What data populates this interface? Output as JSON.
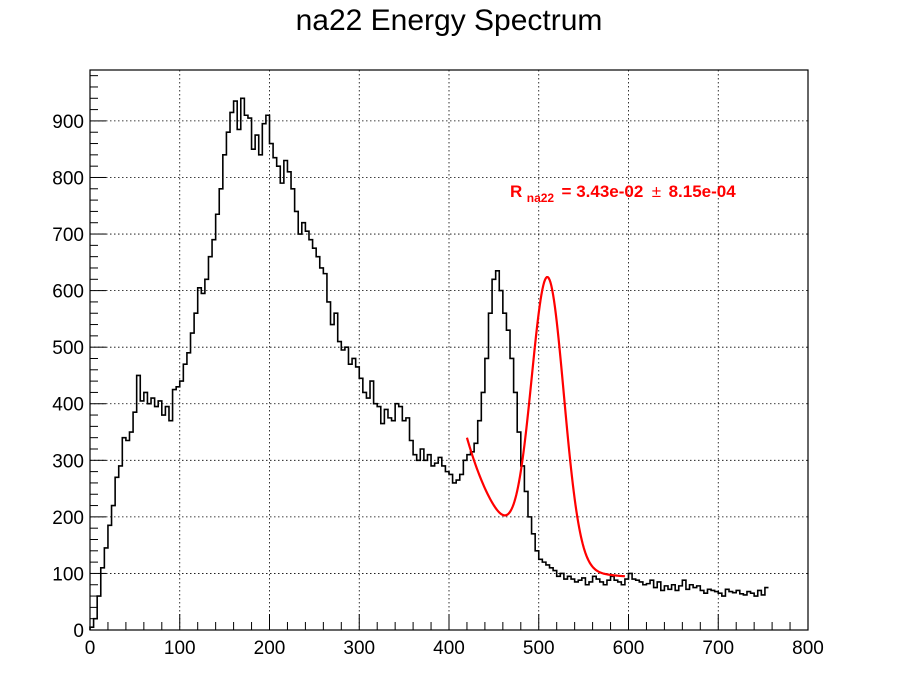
{
  "chart_data": {
    "type": "histogram",
    "title": "na22 Energy Spectrum",
    "xlabel": "",
    "ylabel": "",
    "xlim": [
      0,
      800
    ],
    "ylim": [
      0,
      990
    ],
    "xticks": [
      0,
      100,
      200,
      300,
      400,
      500,
      600,
      700,
      800
    ],
    "yticks": [
      0,
      100,
      200,
      300,
      400,
      500,
      600,
      700,
      800,
      900
    ],
    "grid": true,
    "bin_width": 4,
    "histogram_color": "#000000",
    "counts": [
      5,
      20,
      60,
      110,
      145,
      185,
      220,
      270,
      290,
      340,
      335,
      350,
      385,
      450,
      405,
      420,
      400,
      410,
      395,
      405,
      380,
      395,
      370,
      425,
      430,
      440,
      470,
      490,
      525,
      560,
      605,
      595,
      620,
      660,
      690,
      735,
      780,
      840,
      880,
      915,
      935,
      885,
      940,
      910,
      905,
      850,
      875,
      840,
      895,
      910,
      860,
      835,
      820,
      790,
      830,
      810,
      780,
      740,
      700,
      720,
      705,
      690,
      675,
      660,
      640,
      630,
      580,
      540,
      560,
      510,
      495,
      500,
      470,
      480,
      465,
      445,
      420,
      410,
      440,
      400,
      395,
      365,
      390,
      375,
      370,
      400,
      395,
      370,
      375,
      335,
      310,
      300,
      320,
      300,
      310,
      290,
      295,
      305,
      290,
      280,
      275,
      260,
      265,
      275,
      300,
      310,
      315,
      330,
      370,
      420,
      480,
      560,
      620,
      635,
      600,
      560,
      530,
      480,
      420,
      350,
      290,
      245,
      200,
      170,
      140,
      125,
      120,
      115,
      110,
      105,
      95,
      100,
      90,
      95,
      90,
      85,
      88,
      92,
      80,
      85,
      95,
      90,
      85,
      80,
      88,
      95,
      88,
      85,
      80,
      90,
      100,
      90,
      88,
      85,
      80,
      82,
      88,
      75,
      85,
      70,
      78,
      72,
      80,
      70,
      78,
      88,
      72,
      80,
      75,
      78,
      70,
      65,
      72,
      70,
      68,
      65,
      60,
      72,
      68,
      66,
      70,
      64,
      62,
      68,
      65,
      60,
      70,
      62,
      75
    ],
    "fit": {
      "color": "#ff0000",
      "x_range": [
        420,
        596
      ],
      "label": {
        "main": "R",
        "subscript": "na22",
        "value": "= 3.43e-02",
        "pm": "±",
        "error": "8.15e-04"
      },
      "model": {
        "gauss": {
          "amplitude": 500,
          "mean": 510,
          "sigma": 18
        },
        "background": {
          "base": 90,
          "slope_amp": 250,
          "decay": 45,
          "x0": 420
        }
      }
    }
  }
}
